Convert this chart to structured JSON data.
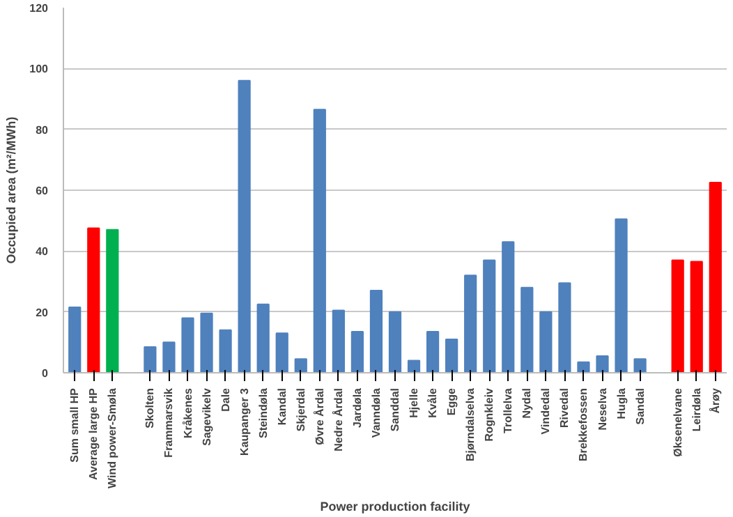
{
  "chart_data": {
    "type": "bar",
    "xlabel": "Power production facility",
    "ylabel": "Occupied area (m²/MWh)",
    "categories": [
      "Sum small HP",
      "Average large HP",
      "Wind power-Smøla",
      null,
      "Skolten",
      "Frammarsvik",
      "Kråkenes",
      "Sagevikelv",
      "Dale",
      "Kaupanger 3",
      "Steindøla",
      "Kandal",
      "Skjerdal",
      "Øvre Årdal",
      "Nedre Årdal",
      "Jardøla",
      "Vanndøla",
      "Sanddal",
      "Hjelle",
      "Kvåle",
      "Egge",
      "Bjørndalselva",
      "Rognkleiv",
      "Trollelva",
      "Nydal",
      "Vindedal",
      "Rivedal",
      "Brekkefossen",
      "Neselva",
      "Hugla",
      "Sandal",
      null,
      "Øksenelvane",
      "Leirdøla",
      "Årøy"
    ],
    "values": [
      21.5,
      47.5,
      47,
      null,
      8.5,
      10,
      18,
      19.5,
      14,
      96,
      22.5,
      13,
      4.5,
      86.5,
      20.5,
      13.5,
      27,
      20,
      4,
      13.5,
      11,
      32,
      37,
      43,
      28,
      20,
      29.5,
      3.5,
      5.5,
      50.5,
      4.5,
      null,
      37,
      36.5,
      62.5
    ],
    "colors": [
      "#4f81bd",
      "#ff0000",
      "#00b050",
      null,
      "#4f81bd",
      "#4f81bd",
      "#4f81bd",
      "#4f81bd",
      "#4f81bd",
      "#4f81bd",
      "#4f81bd",
      "#4f81bd",
      "#4f81bd",
      "#4f81bd",
      "#4f81bd",
      "#4f81bd",
      "#4f81bd",
      "#4f81bd",
      "#4f81bd",
      "#4f81bd",
      "#4f81bd",
      "#4f81bd",
      "#4f81bd",
      "#4f81bd",
      "#4f81bd",
      "#4f81bd",
      "#4f81bd",
      "#4f81bd",
      "#4f81bd",
      "#4f81bd",
      "#4f81bd",
      null,
      "#ff0000",
      "#ff0000",
      "#ff0000"
    ],
    "ylim": [
      0,
      120
    ],
    "yticks": [
      0,
      20,
      40,
      60,
      80,
      100,
      120
    ],
    "grid": "y"
  }
}
